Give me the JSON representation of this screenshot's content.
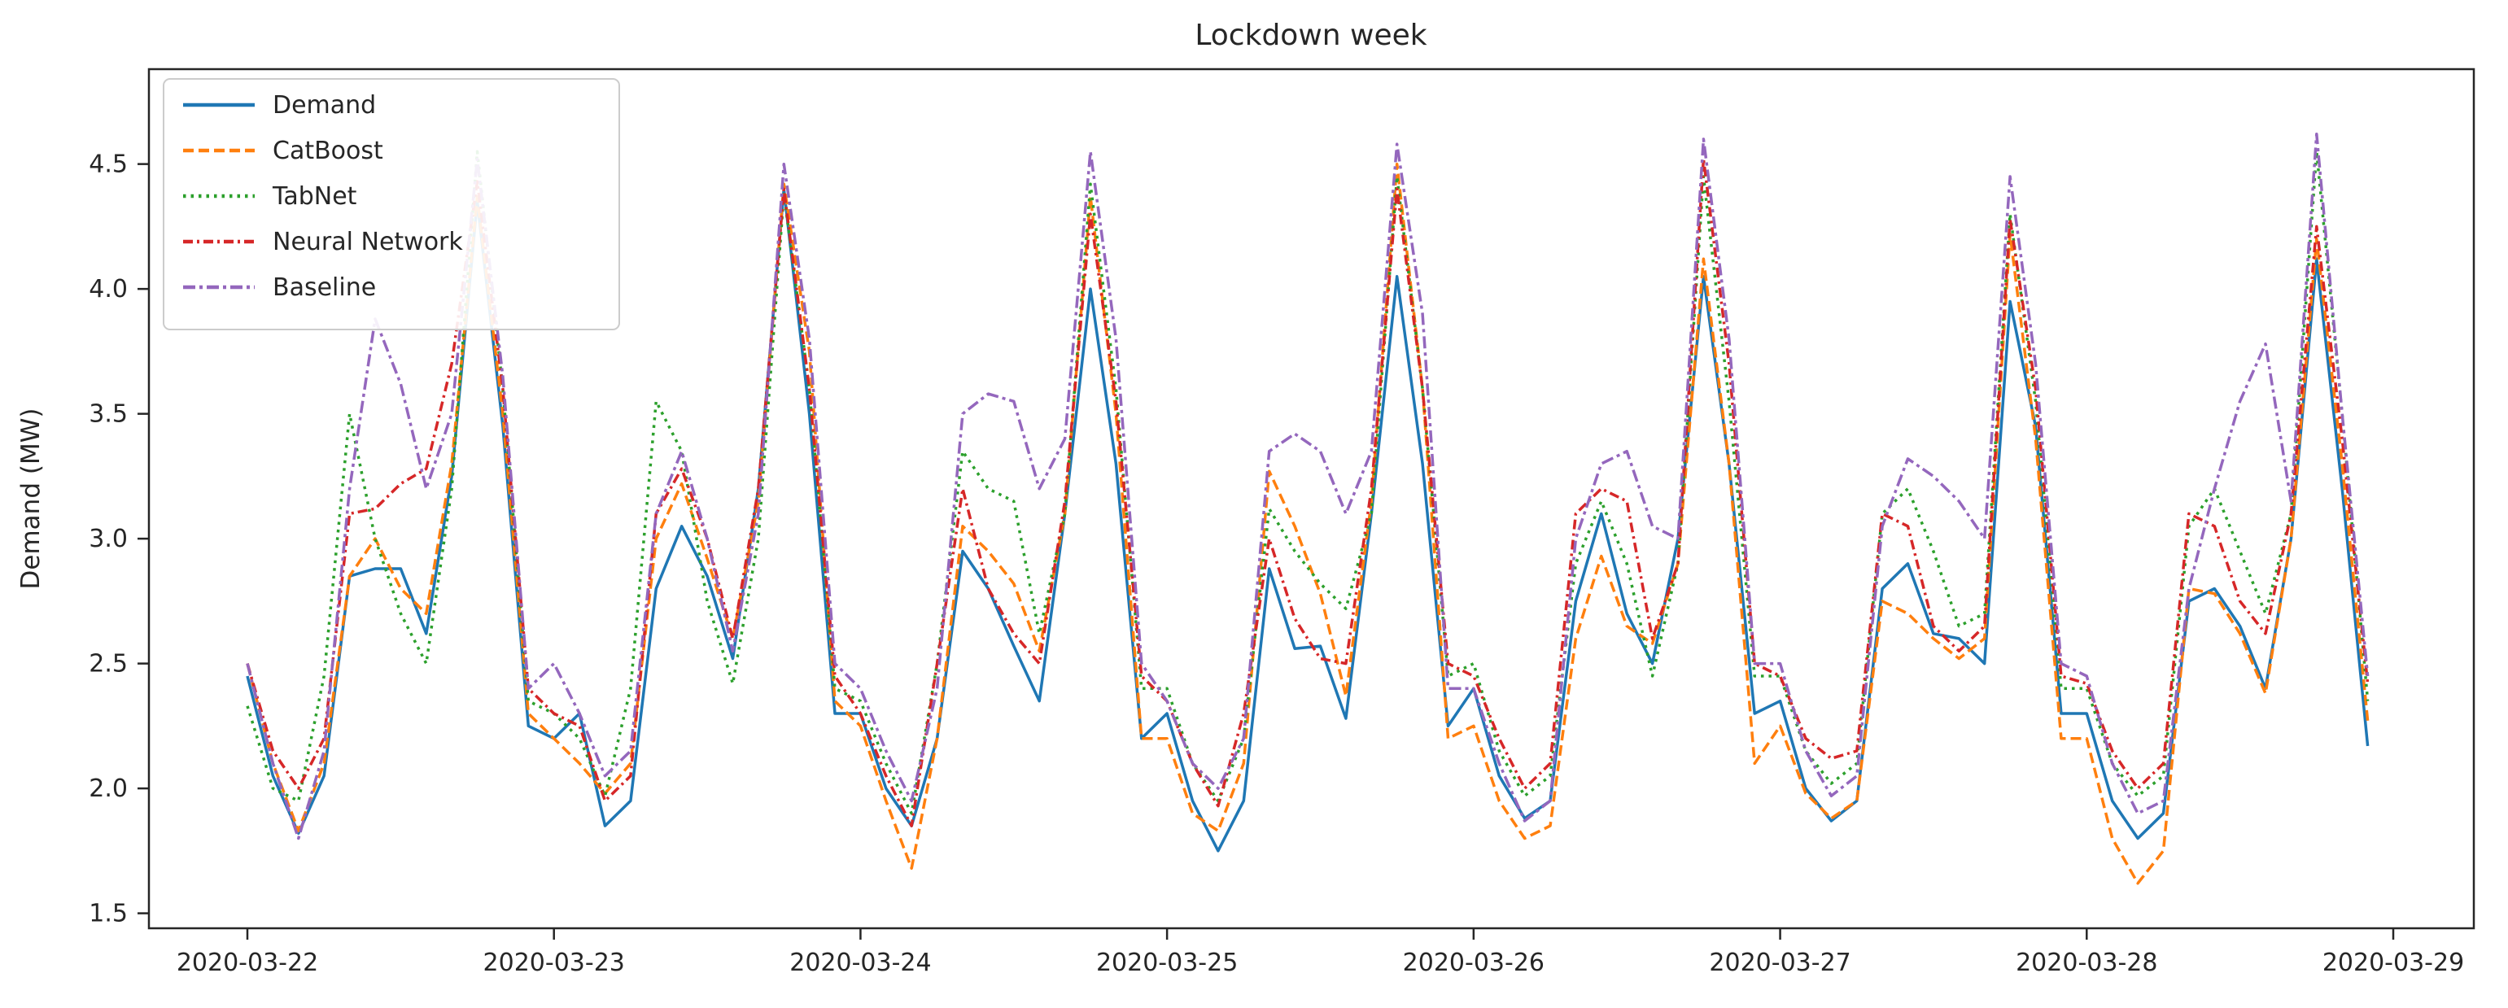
{
  "chart_data": {
    "type": "line",
    "title": "Lockdown week",
    "xlabel": "",
    "ylabel": "Demand (MW)",
    "x_start": "2020-03-22 00:00",
    "x_step_hours": 2,
    "x_total_hours": 168,
    "x_tick_hours": [
      0,
      24,
      48,
      72,
      96,
      120,
      144,
      168
    ],
    "x_tick_labels": [
      "2020-03-22",
      "2020-03-23",
      "2020-03-24",
      "2020-03-25",
      "2020-03-26",
      "2020-03-27",
      "2020-03-28",
      "2020-03-29"
    ],
    "yticks": [
      1.5,
      2.0,
      2.5,
      3.0,
      3.5,
      4.0,
      4.5
    ],
    "ytick_labels": [
      "1.5",
      "2.0",
      "2.5",
      "3.0",
      "3.5",
      "4.0",
      "4.5"
    ],
    "ylim": [
      1.44,
      4.88
    ],
    "grid": false,
    "legend_position": "upper left",
    "series": [
      {
        "name": "Demand",
        "color": "#1f77b4",
        "style": "solid",
        "values": [
          2.45,
          2.05,
          1.82,
          2.05,
          2.85,
          2.88,
          2.88,
          2.62,
          3.25,
          4.35,
          3.45,
          2.25,
          2.2,
          2.3,
          1.85,
          1.95,
          2.8,
          3.05,
          2.85,
          2.52,
          3.2,
          4.4,
          3.5,
          2.3,
          2.3,
          2.0,
          1.85,
          2.2,
          2.95,
          2.8,
          2.57,
          2.35,
          3.1,
          4.0,
          3.3,
          2.2,
          2.3,
          1.95,
          1.75,
          1.95,
          2.88,
          2.56,
          2.57,
          2.28,
          3.1,
          4.05,
          3.3,
          2.25,
          2.4,
          2.05,
          1.88,
          1.95,
          2.75,
          3.1,
          2.7,
          2.5,
          3.0,
          4.05,
          3.3,
          2.3,
          2.35,
          2.0,
          1.87,
          1.95,
          2.8,
          2.9,
          2.62,
          2.6,
          2.5,
          3.95,
          3.45,
          2.3,
          2.3,
          1.95,
          1.8,
          1.9,
          2.75,
          2.8,
          2.65,
          2.4,
          3.0,
          4.12,
          3.2,
          2.17
        ]
      },
      {
        "name": "CatBoost",
        "color": "#ff7f0e",
        "style": "dashed",
        "values": [
          2.5,
          2.1,
          1.83,
          2.1,
          2.85,
          3.0,
          2.8,
          2.7,
          3.3,
          4.37,
          3.5,
          2.3,
          2.2,
          2.1,
          1.98,
          2.1,
          3.0,
          3.22,
          2.92,
          2.6,
          3.15,
          4.42,
          3.75,
          2.35,
          2.25,
          1.95,
          1.68,
          2.2,
          3.05,
          2.95,
          2.82,
          2.55,
          3.1,
          4.37,
          3.5,
          2.2,
          2.2,
          1.9,
          1.83,
          2.1,
          3.27,
          3.05,
          2.78,
          2.37,
          3.15,
          4.5,
          3.6,
          2.2,
          2.25,
          1.95,
          1.8,
          1.85,
          2.6,
          2.93,
          2.65,
          2.58,
          2.9,
          4.12,
          3.3,
          2.1,
          2.25,
          1.98,
          1.88,
          1.95,
          2.75,
          2.7,
          2.6,
          2.52,
          2.6,
          4.22,
          3.4,
          2.2,
          2.2,
          1.8,
          1.62,
          1.75,
          2.8,
          2.78,
          2.62,
          2.38,
          3.0,
          4.2,
          3.3,
          2.27
        ]
      },
      {
        "name": "TabNet",
        "color": "#2ca02c",
        "style": "dotted",
        "values": [
          2.33,
          2.0,
          1.95,
          2.45,
          3.5,
          3.0,
          2.7,
          2.5,
          3.2,
          4.55,
          3.6,
          2.35,
          2.3,
          2.2,
          1.97,
          2.4,
          3.55,
          3.35,
          2.75,
          2.42,
          3.0,
          4.38,
          3.6,
          2.4,
          2.35,
          2.1,
          1.9,
          2.5,
          3.35,
          3.2,
          3.15,
          2.62,
          3.1,
          4.42,
          3.6,
          2.4,
          2.4,
          2.1,
          1.95,
          2.2,
          3.12,
          2.95,
          2.82,
          2.72,
          3.1,
          4.45,
          3.6,
          2.45,
          2.5,
          2.15,
          1.97,
          2.05,
          2.9,
          3.15,
          2.9,
          2.45,
          2.9,
          4.45,
          3.55,
          2.45,
          2.45,
          2.15,
          2.02,
          2.1,
          3.1,
          3.2,
          2.95,
          2.65,
          2.7,
          4.3,
          3.55,
          2.4,
          2.4,
          2.1,
          1.97,
          2.05,
          3.05,
          3.2,
          2.95,
          2.7,
          3.1,
          4.55,
          3.5,
          2.35
        ]
      },
      {
        "name": "Neural Network",
        "color": "#d62728",
        "style": "dashdot",
        "values": [
          2.5,
          2.15,
          2.0,
          2.2,
          3.1,
          3.12,
          3.22,
          3.28,
          3.7,
          4.43,
          3.6,
          2.4,
          2.3,
          2.25,
          1.95,
          2.05,
          3.1,
          3.28,
          3.0,
          2.6,
          3.2,
          4.4,
          3.6,
          2.45,
          2.3,
          2.05,
          1.85,
          2.5,
          3.2,
          2.8,
          2.62,
          2.5,
          3.15,
          4.3,
          3.55,
          2.45,
          2.35,
          2.1,
          1.93,
          2.3,
          3.0,
          2.68,
          2.52,
          2.5,
          3.2,
          4.4,
          3.6,
          2.5,
          2.45,
          2.2,
          2.0,
          2.1,
          3.1,
          3.2,
          3.15,
          2.6,
          2.9,
          4.52,
          3.7,
          2.5,
          2.45,
          2.2,
          2.12,
          2.15,
          3.1,
          3.05,
          2.65,
          2.55,
          2.65,
          4.28,
          3.6,
          2.45,
          2.42,
          2.15,
          2.0,
          2.1,
          3.1,
          3.05,
          2.75,
          2.62,
          3.1,
          4.25,
          3.4,
          2.42
        ]
      },
      {
        "name": "Baseline",
        "color": "#9467bd",
        "style": "dashdotdot",
        "values": [
          2.5,
          2.1,
          1.8,
          2.15,
          3.2,
          3.88,
          3.62,
          3.2,
          3.5,
          4.52,
          3.65,
          2.4,
          2.5,
          2.3,
          2.05,
          2.15,
          3.1,
          3.35,
          3.0,
          2.55,
          3.1,
          4.5,
          3.8,
          2.5,
          2.4,
          2.15,
          1.95,
          2.4,
          3.5,
          3.58,
          3.55,
          3.2,
          3.4,
          4.55,
          3.8,
          2.5,
          2.35,
          2.1,
          2.0,
          2.2,
          3.35,
          3.42,
          3.35,
          3.1,
          3.35,
          4.58,
          3.9,
          2.4,
          2.4,
          2.1,
          1.87,
          1.95,
          3.0,
          3.3,
          3.35,
          3.05,
          3.0,
          4.6,
          3.8,
          2.5,
          2.5,
          2.15,
          1.97,
          2.05,
          3.05,
          3.32,
          3.25,
          3.15,
          3.0,
          4.45,
          3.7,
          2.5,
          2.45,
          2.1,
          1.9,
          1.95,
          2.8,
          3.2,
          3.55,
          3.78,
          3.15,
          4.62,
          3.5,
          2.45
        ]
      }
    ],
    "axis_color": "#262626",
    "background_color": "#ffffff",
    "legend_border_color": "#cccccc"
  }
}
